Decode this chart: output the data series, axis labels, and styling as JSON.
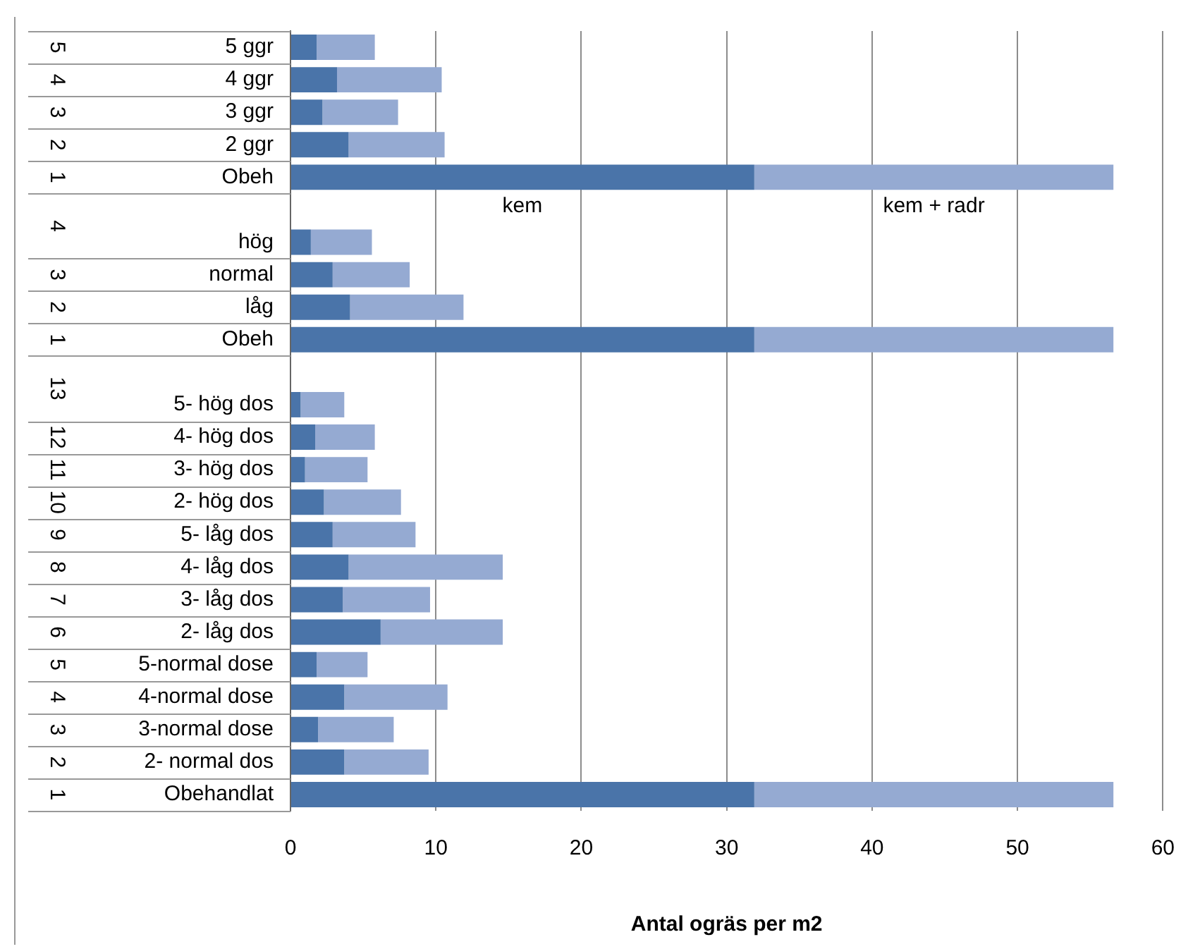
{
  "chart_data": {
    "type": "bar",
    "orientation": "horizontal",
    "stacked": true,
    "xlabel": "Antal ogräs per m2",
    "categories": [
      "5 ggr",
      "4 ggr",
      "3 ggr",
      "2 ggr",
      "Obeh",
      null,
      "hög",
      "normal",
      "låg",
      "Obeh",
      null,
      "5- hög dos",
      "4- hög dos",
      "3- hög dos",
      "2- hög dos",
      "5- låg dos",
      "4- låg dos",
      "3- låg dos",
      "2- låg dos",
      "5-normal dose",
      "4-normal dose",
      "3-normal dose",
      "2- normal dos",
      "Obehandlat"
    ],
    "series": [
      {
        "name": "kem",
        "color": "#4a74a9",
        "values": [
          1.8,
          3.2,
          2.2,
          4.0,
          31.9,
          null,
          1.4,
          2.9,
          4.1,
          31.9,
          null,
          0.7,
          1.7,
          1.0,
          2.3,
          2.9,
          4.0,
          3.6,
          6.2,
          1.8,
          3.7,
          1.9,
          3.7,
          31.9
        ]
      },
      {
        "name": "kem + radr",
        "color": "#95aad2",
        "values": [
          4.0,
          7.2,
          5.2,
          6.6,
          24.7,
          null,
          4.2,
          5.3,
          7.8,
          24.7,
          null,
          3.0,
          4.1,
          4.3,
          5.3,
          5.7,
          10.6,
          6.0,
          8.4,
          3.5,
          7.1,
          5.2,
          5.8,
          24.7
        ]
      }
    ],
    "xlim": [
      0,
      60
    ],
    "xticks": [
      0,
      10,
      20,
      30,
      40,
      50,
      60
    ],
    "grid": "x",
    "legend": false,
    "annotations": [
      "5",
      "4",
      "3",
      "2",
      "1",
      "4",
      "3",
      "2",
      "1",
      "13",
      "12",
      "11",
      "10",
      "9",
      "8",
      "7",
      "6",
      "5",
      "4",
      "3",
      "2",
      "1"
    ]
  }
}
